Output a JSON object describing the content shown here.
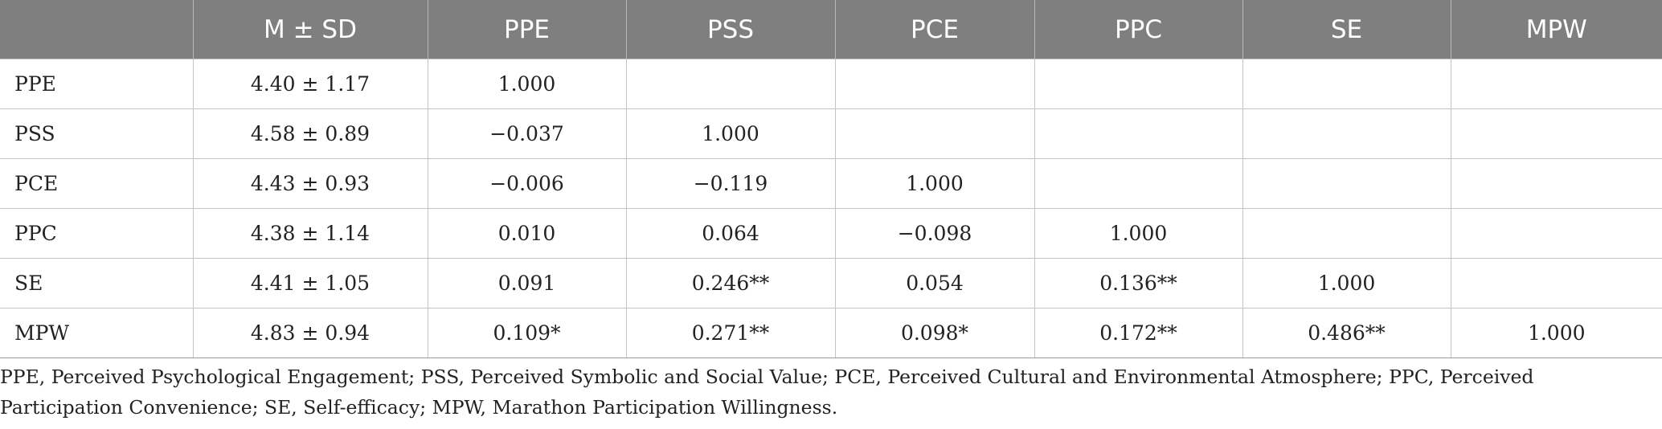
{
  "table": {
    "headers": [
      "",
      "M ± SD",
      "PPE",
      "PSS",
      "PCE",
      "PPC",
      "SE",
      "MPW"
    ],
    "rows": [
      [
        "PPE",
        "4.40 ± 1.17",
        "1.000",
        "",
        "",
        "",
        "",
        ""
      ],
      [
        "PSS",
        "4.58 ± 0.89",
        "−0.037",
        "1.000",
        "",
        "",
        "",
        ""
      ],
      [
        "PCE",
        "4.43 ± 0.93",
        "−0.006",
        "−0.119",
        "1.000",
        "",
        "",
        ""
      ],
      [
        "PPC",
        "4.38 ± 1.14",
        "0.010",
        "0.064",
        "−0.098",
        "1.000",
        "",
        ""
      ],
      [
        "SE",
        "4.41 ± 1.05",
        "0.091",
        "0.246**",
        "0.054",
        "0.136**",
        "1.000",
        ""
      ],
      [
        "MPW",
        "4.83 ± 0.94",
        "0.109*",
        "0.271**",
        "0.098*",
        "0.172**",
        "0.486**",
        "1.000"
      ]
    ]
  },
  "footnote": "PPE, Perceived Psychological Engagement; PSS, Perceived Symbolic and Social Value; PCE, Perceived Cultural and Environmental Atmosphere; PPC, Perceived Participation Convenience; SE, Self-efficacy; MPW, Marathon Participation Willingness."
}
